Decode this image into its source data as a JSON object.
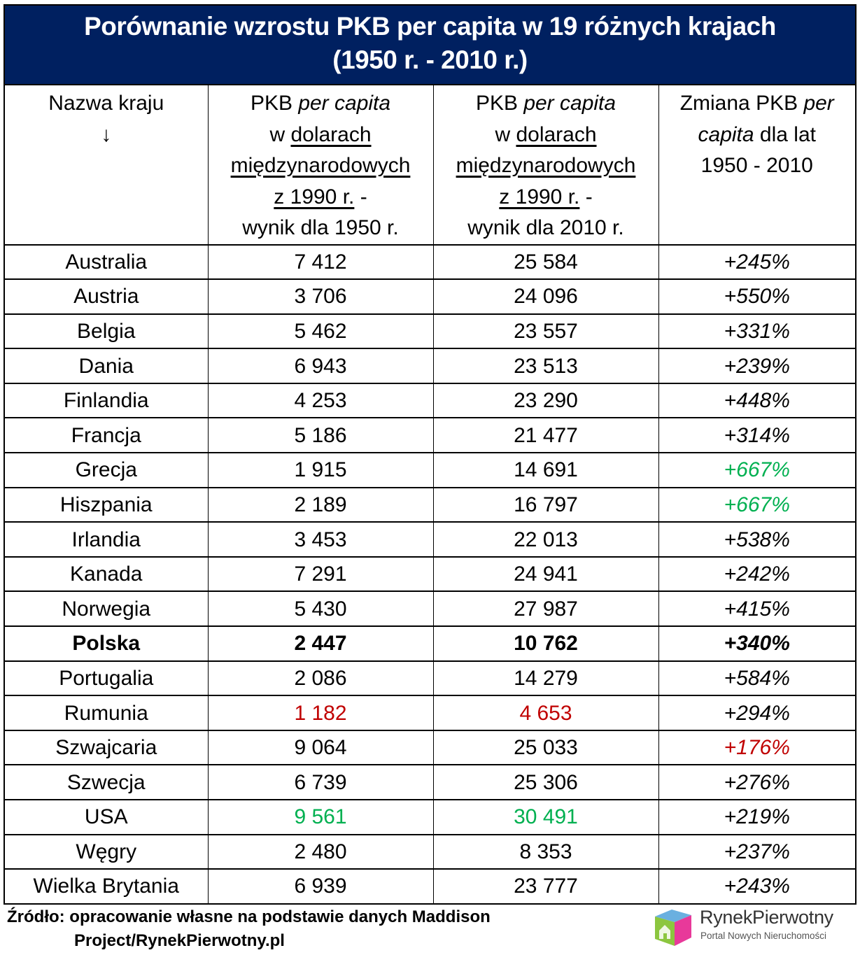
{
  "title": {
    "line1": "Porównanie wzrostu PKB per capita w 19 różnych krajach",
    "line2": "(1950 r. - 2010 r.)"
  },
  "colors": {
    "title_band": "#002060",
    "highlight_green": "#00B050",
    "highlight_red": "#C00000",
    "text": "#000000"
  },
  "header": {
    "col1": {
      "line1": "Nazwa kraju",
      "arrow": "↓"
    },
    "col2": {
      "pkb": "PKB ",
      "per_capita": "per capita",
      "w": "w ",
      "dolarach": "dolarach",
      "miedzynarodowych": "międzynarodowych",
      "z1990": "z 1990 r.",
      "dash": " -",
      "wynik": "wynik dla 1950 r."
    },
    "col3": {
      "pkb": "PKB ",
      "per_capita": "per capita",
      "w": "w ",
      "dolarach": "dolarach",
      "miedzynarodowych": "międzynarodowych",
      "z1990": "z 1990 r.",
      "dash": " -",
      "wynik": "wynik dla 2010 r."
    },
    "col4": {
      "zmiana": "Zmiana PKB ",
      "per": "per",
      "capita": "capita",
      "dla_lat": " dla lat",
      "years": "1950 - 2010"
    }
  },
  "rows": [
    {
      "country": "Australia",
      "gdp1950": "7 412",
      "gdp2010": "25 584",
      "change": "+245%"
    },
    {
      "country": "Austria",
      "gdp1950": "3 706",
      "gdp2010": "24 096",
      "change": "+550%"
    },
    {
      "country": "Belgia",
      "gdp1950": "5 462",
      "gdp2010": "23 557",
      "change": "+331%"
    },
    {
      "country": "Dania",
      "gdp1950": "6 943",
      "gdp2010": "23 513",
      "change": "+239%"
    },
    {
      "country": "Finlandia",
      "gdp1950": "4 253",
      "gdp2010": "23 290",
      "change": "+448%"
    },
    {
      "country": "Francja",
      "gdp1950": "5 186",
      "gdp2010": "21 477",
      "change": "+314%"
    },
    {
      "country": "Grecja",
      "gdp1950": "1 915",
      "gdp2010": "14 691",
      "change": "+667%",
      "change_color": "#00B050"
    },
    {
      "country": "Hiszpania",
      "gdp1950": "2 189",
      "gdp2010": "16 797",
      "change": "+667%",
      "change_color": "#00B050"
    },
    {
      "country": "Irlandia",
      "gdp1950": "3 453",
      "gdp2010": "22 013",
      "change": "+538%"
    },
    {
      "country": "Kanada",
      "gdp1950": "7 291",
      "gdp2010": "24 941",
      "change": "+242%"
    },
    {
      "country": "Norwegia",
      "gdp1950": "5 430",
      "gdp2010": "27 987",
      "change": "+415%"
    },
    {
      "country": "Polska",
      "gdp1950": "2 447",
      "gdp2010": "10 762",
      "change": "+340%",
      "bold": true
    },
    {
      "country": "Portugalia",
      "gdp1950": "2 086",
      "gdp2010": "14 279",
      "change": "+584%"
    },
    {
      "country": "Rumunia",
      "gdp1950": "1 182",
      "gdp2010": "4 653",
      "change": "+294%",
      "gdp_color": "#C00000"
    },
    {
      "country": "Szwajcaria",
      "gdp1950": "9 064",
      "gdp2010": "25 033",
      "change": "+176%",
      "change_color": "#C00000"
    },
    {
      "country": "Szwecja",
      "gdp1950": "6 739",
      "gdp2010": "25 306",
      "change": "+276%"
    },
    {
      "country": "USA",
      "gdp1950": "9 561",
      "gdp2010": "30 491",
      "change": "+219%",
      "gdp_color": "#00B050"
    },
    {
      "country": "Węgry",
      "gdp1950": "2 480",
      "gdp2010": "8 353",
      "change": "+237%"
    },
    {
      "country": "Wielka Brytania",
      "gdp1950": "6 939",
      "gdp2010": "23 777",
      "change": "+243%"
    }
  ],
  "footer": {
    "source_line1": "Źródło: opracowanie własne na podstawie danych Maddison",
    "source_line2": "Project/RynekPierwotny.pl"
  },
  "logo": {
    "icon": "house-cube-icon",
    "brand": "RynekPierwotny",
    "tagline": "Portal Nowych Nieruchomości"
  }
}
